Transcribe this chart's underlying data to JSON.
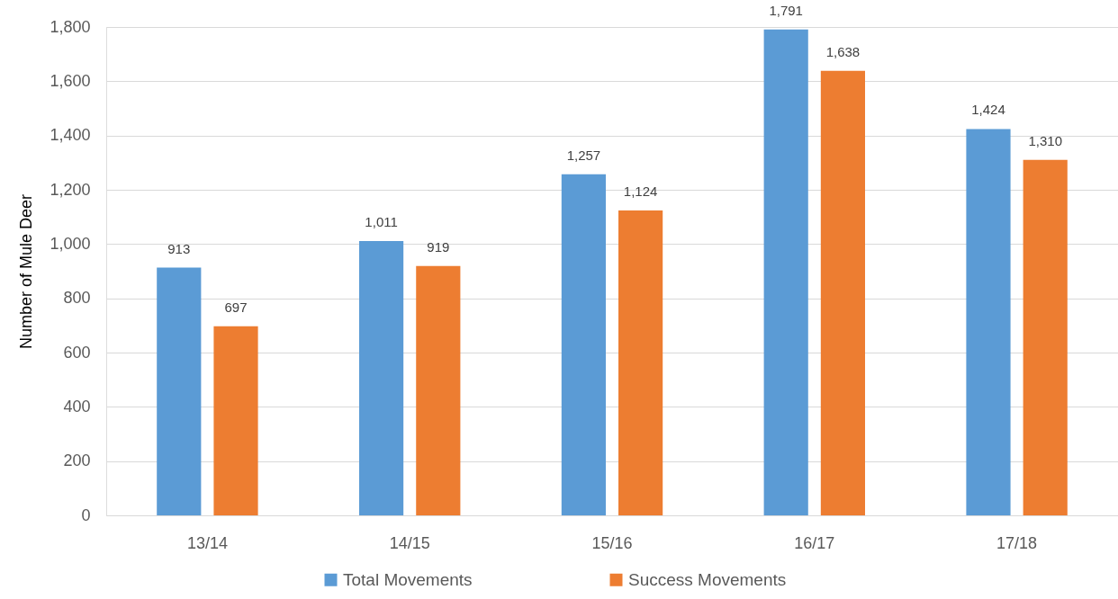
{
  "chart_data": {
    "type": "bar",
    "ylabel": "Number of Mule Deer",
    "categories": [
      "13/14",
      "14/15",
      "15/16",
      "16/17",
      "17/18"
    ],
    "series": [
      {
        "name": "Total Movements",
        "color": "#5b9bd5",
        "values": [
          913,
          1011,
          1257,
          1791,
          1424
        ],
        "value_labels": [
          "913",
          "1,011",
          "1,257",
          "1,791",
          "1,424"
        ]
      },
      {
        "name": "Success Movements",
        "color": "#ed7d31",
        "values": [
          697,
          919,
          1124,
          1638,
          1310
        ],
        "value_labels": [
          "697",
          "919",
          "1,124",
          "1,638",
          "1,310"
        ]
      }
    ],
    "ylim": [
      0,
      1800
    ],
    "yticks": [
      0,
      200,
      400,
      600,
      800,
      {
        "value": 1000,
        "label": "1,000"
      },
      {
        "value": 1200,
        "label": "1,200"
      },
      {
        "value": 1400,
        "label": "1,400"
      },
      {
        "value": 1600,
        "label": "1,600"
      },
      {
        "value": 1800,
        "label": "1,800"
      }
    ],
    "grid": "y",
    "legend": "bottom"
  }
}
